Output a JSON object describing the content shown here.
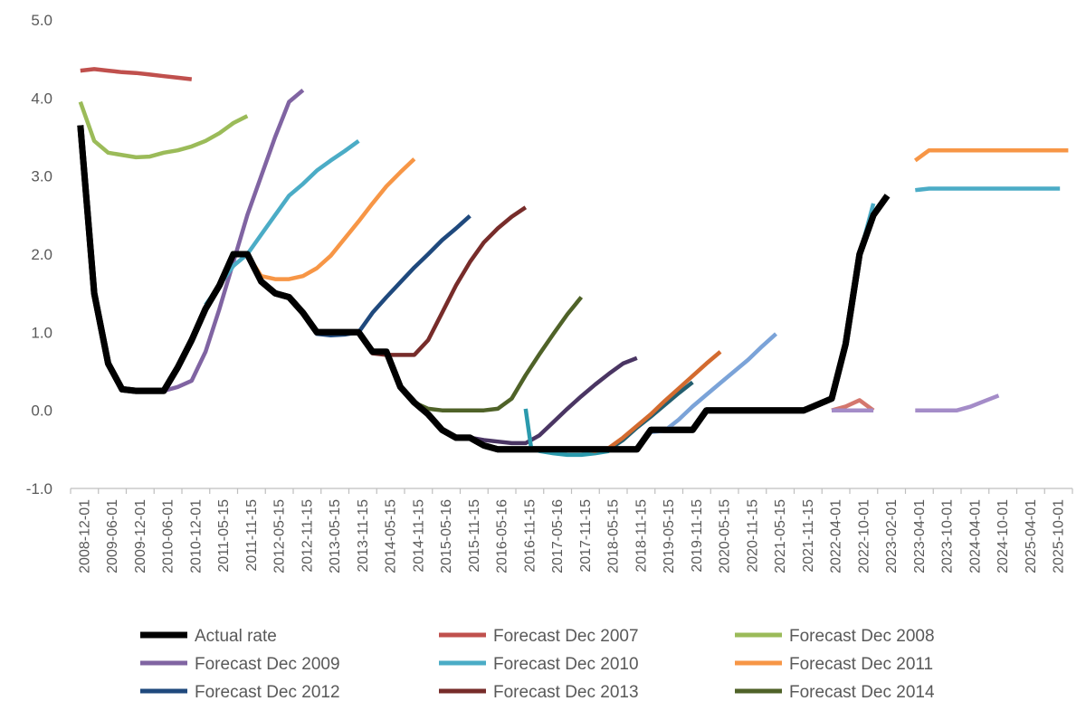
{
  "chart_data": {
    "type": "line",
    "ylim": [
      -1.0,
      5.0
    ],
    "yticks": [
      "5.0",
      "4.0",
      "3.0",
      "2.0",
      "1.0",
      "0.0",
      "-1.0"
    ],
    "ytick_values": [
      5,
      4,
      3,
      2,
      1,
      0,
      -1
    ],
    "x_tick_labels": [
      "2008-12-01",
      "2009-06-01",
      "2009-12-01",
      "2010-06-01",
      "2010-12-01",
      "2011-05-15",
      "2011-11-15",
      "2012-05-15",
      "2012-11-15",
      "2013-05-15",
      "2013-11-15",
      "2014-05-15",
      "2014-11-15",
      "2015-05-16",
      "2015-11-15",
      "2016-05-16",
      "2016-11-15",
      "2017-05-16",
      "2017-11-15",
      "2018-05-15",
      "2018-11-15",
      "2019-05-15",
      "2019-11-15",
      "2020-05-15",
      "2020-11-15",
      "2021-05-15",
      "2021-11-15",
      "2022-04-01",
      "2022-10-01",
      "2023-02-01",
      "2023-04-01",
      "2023-10-01",
      "2024-04-01",
      "2024-10-01",
      "2025-04-01",
      "2025-10-01"
    ],
    "grid": "none",
    "legend_position": "bottom",
    "series": [
      {
        "name": "Actual rate",
        "color": "#000000",
        "width": 7,
        "points": [
          [
            0,
            3.65
          ],
          [
            0.5,
            1.5
          ],
          [
            1,
            0.6
          ],
          [
            1.5,
            0.27
          ],
          [
            2,
            0.25
          ],
          [
            2.5,
            0.25
          ],
          [
            3,
            0.25
          ],
          [
            3.5,
            0.55
          ],
          [
            4,
            0.9
          ],
          [
            4.5,
            1.3
          ],
          [
            5,
            1.6
          ],
          [
            5.5,
            2.0
          ],
          [
            6,
            2.0
          ],
          [
            6.5,
            1.65
          ],
          [
            7,
            1.5
          ],
          [
            7.5,
            1.45
          ],
          [
            8,
            1.25
          ],
          [
            8.5,
            1.0
          ],
          [
            9,
            1.0
          ],
          [
            9.5,
            1.0
          ],
          [
            10,
            1.0
          ],
          [
            10.5,
            0.75
          ],
          [
            11,
            0.75
          ],
          [
            11.5,
            0.3
          ],
          [
            12,
            0.1
          ],
          [
            12.5,
            -0.05
          ],
          [
            13,
            -0.25
          ],
          [
            13.5,
            -0.35
          ],
          [
            14,
            -0.35
          ],
          [
            14.5,
            -0.45
          ],
          [
            15,
            -0.5
          ],
          [
            16,
            -0.5
          ],
          [
            17,
            -0.5
          ],
          [
            18,
            -0.5
          ],
          [
            19,
            -0.5
          ],
          [
            20,
            -0.5
          ],
          [
            20.5,
            -0.25
          ],
          [
            21,
            -0.25
          ],
          [
            22,
            -0.25
          ],
          [
            22.5,
            0
          ],
          [
            24,
            0
          ],
          [
            26,
            0
          ],
          [
            27,
            0.15
          ],
          [
            27.5,
            0.85
          ],
          [
            28,
            2.0
          ],
          [
            28.5,
            2.5
          ],
          [
            29,
            2.75
          ]
        ]
      },
      {
        "name": "Forecast Dec 2007",
        "color": "#c0504d",
        "width": 4.5,
        "points": [
          [
            0,
            4.35
          ],
          [
            0.5,
            4.37
          ],
          [
            1,
            4.35
          ],
          [
            1.5,
            4.33
          ],
          [
            2,
            4.32
          ],
          [
            2.5,
            4.3
          ],
          [
            3,
            4.28
          ],
          [
            3.5,
            4.26
          ],
          [
            4,
            4.24
          ]
        ]
      },
      {
        "name": "Forecast Dec 2008",
        "color": "#9bbb59",
        "width": 4.5,
        "points": [
          [
            0,
            3.95
          ],
          [
            0.5,
            3.45
          ],
          [
            1,
            3.3
          ],
          [
            1.5,
            3.27
          ],
          [
            2,
            3.24
          ],
          [
            2.5,
            3.25
          ],
          [
            3,
            3.3
          ],
          [
            3.5,
            3.33
          ],
          [
            4,
            3.38
          ],
          [
            4.5,
            3.45
          ],
          [
            5,
            3.55
          ],
          [
            5.5,
            3.68
          ],
          [
            6,
            3.77
          ]
        ]
      },
      {
        "name": "Forecast Dec 2009",
        "color": "#8064a2",
        "width": 4.5,
        "points": [
          [
            2,
            0.25
          ],
          [
            2.5,
            0.25
          ],
          [
            3,
            0.25
          ],
          [
            3.5,
            0.3
          ],
          [
            4,
            0.38
          ],
          [
            4.5,
            0.75
          ],
          [
            5,
            1.3
          ],
          [
            5.5,
            1.9
          ],
          [
            6,
            2.5
          ],
          [
            6.5,
            3.0
          ],
          [
            7,
            3.5
          ],
          [
            7.5,
            3.95
          ],
          [
            8,
            4.1
          ]
        ]
      },
      {
        "name": "Forecast Dec 2010",
        "color": "#4bacc6",
        "width": 4.5,
        "points": [
          [
            4.5,
            1.35
          ],
          [
            5,
            1.6
          ],
          [
            5.5,
            1.85
          ],
          [
            6,
            2.0
          ],
          [
            6.5,
            2.25
          ],
          [
            7,
            2.5
          ],
          [
            7.5,
            2.75
          ],
          [
            8,
            2.9
          ],
          [
            8.5,
            3.07
          ],
          [
            9,
            3.2
          ],
          [
            9.5,
            3.32
          ],
          [
            10,
            3.45
          ]
        ]
      },
      {
        "name": "Forecast Dec 2011",
        "color": "#f79646",
        "width": 4.5,
        "points": [
          [
            6,
            2.0
          ],
          [
            6.5,
            1.72
          ],
          [
            7,
            1.68
          ],
          [
            7.5,
            1.68
          ],
          [
            8,
            1.72
          ],
          [
            8.5,
            1.82
          ],
          [
            9,
            1.98
          ],
          [
            9.5,
            2.2
          ],
          [
            10,
            2.42
          ],
          [
            10.5,
            2.65
          ],
          [
            11,
            2.87
          ],
          [
            11.5,
            3.05
          ],
          [
            12,
            3.22
          ]
        ]
      },
      {
        "name": "Forecast Dec 2012",
        "color": "#1f497d",
        "width": 4.5,
        "points": [
          [
            8,
            1.25
          ],
          [
            8.5,
            0.98
          ],
          [
            9,
            0.96
          ],
          [
            9.5,
            0.97
          ],
          [
            10,
            1.0
          ],
          [
            10.5,
            1.25
          ],
          [
            11,
            1.45
          ],
          [
            11.5,
            1.64
          ],
          [
            12,
            1.83
          ],
          [
            12.5,
            2.0
          ],
          [
            13,
            2.18
          ],
          [
            13.5,
            2.33
          ],
          [
            14,
            2.49
          ]
        ]
      },
      {
        "name": "Forecast Dec 2013",
        "color": "#772c2a",
        "width": 4.5,
        "points": [
          [
            10,
            1.0
          ],
          [
            10.5,
            0.73
          ],
          [
            11,
            0.71
          ],
          [
            11.5,
            0.71
          ],
          [
            12,
            0.71
          ],
          [
            12.5,
            0.9
          ],
          [
            13,
            1.25
          ],
          [
            13.5,
            1.6
          ],
          [
            14,
            1.9
          ],
          [
            14.5,
            2.15
          ],
          [
            15,
            2.33
          ],
          [
            15.5,
            2.48
          ],
          [
            16,
            2.6
          ]
        ]
      },
      {
        "name": "Forecast Dec 2014",
        "color": "#4f6228",
        "width": 4.5,
        "points": [
          [
            12,
            0.1
          ],
          [
            12.5,
            0.02
          ],
          [
            13,
            0.0
          ],
          [
            13.5,
            0.0
          ],
          [
            14,
            0.0
          ],
          [
            14.5,
            0.0
          ],
          [
            15,
            0.02
          ],
          [
            15.5,
            0.15
          ],
          [
            16,
            0.45
          ],
          [
            16.5,
            0.72
          ],
          [
            17,
            0.98
          ],
          [
            17.5,
            1.23
          ],
          [
            18,
            1.45
          ]
        ]
      },
      {
        "name": "",
        "color": "#4a3563",
        "width": 4.5,
        "points": [
          [
            14,
            -0.35
          ],
          [
            14.5,
            -0.38
          ],
          [
            15,
            -0.4
          ],
          [
            15.5,
            -0.42
          ],
          [
            16,
            -0.42
          ],
          [
            16.5,
            -0.32
          ],
          [
            17,
            -0.15
          ],
          [
            17.5,
            0.02
          ],
          [
            18,
            0.18
          ],
          [
            18.5,
            0.33
          ],
          [
            19,
            0.47
          ],
          [
            19.5,
            0.6
          ],
          [
            20,
            0.67
          ]
        ]
      },
      {
        "name": "",
        "color": "#2b9aad",
        "width": 4.5,
        "points": [
          [
            16,
            0.02
          ],
          [
            16.2,
            -0.48
          ],
          [
            16.5,
            -0.52
          ],
          [
            17,
            -0.55
          ],
          [
            17.5,
            -0.57
          ],
          [
            18,
            -0.57
          ],
          [
            18.5,
            -0.55
          ],
          [
            19,
            -0.52
          ]
        ]
      },
      {
        "name": "",
        "color": "#235e6f",
        "width": 4.5,
        "points": [
          [
            19,
            -0.5
          ],
          [
            19.5,
            -0.38
          ],
          [
            20,
            -0.22
          ],
          [
            20.5,
            -0.08
          ],
          [
            21,
            0.07
          ],
          [
            21.5,
            0.22
          ],
          [
            22,
            0.36
          ]
        ]
      },
      {
        "name": "",
        "color": "#d36b2f",
        "width": 4.5,
        "points": [
          [
            18,
            -0.5
          ],
          [
            18.5,
            -0.52
          ],
          [
            19,
            -0.48
          ],
          [
            19.5,
            -0.35
          ],
          [
            20,
            -0.2
          ],
          [
            20.5,
            -0.05
          ],
          [
            21,
            0.12
          ],
          [
            21.5,
            0.28
          ],
          [
            22,
            0.44
          ],
          [
            22.5,
            0.6
          ],
          [
            23,
            0.75
          ]
        ]
      },
      {
        "name": "",
        "color": "#7ba3d8",
        "width": 4.5,
        "points": [
          [
            20.5,
            -0.28
          ],
          [
            21,
            -0.26
          ],
          [
            21.5,
            -0.12
          ],
          [
            22,
            0.05
          ],
          [
            22.5,
            0.2
          ],
          [
            23,
            0.35
          ],
          [
            23.5,
            0.5
          ],
          [
            24,
            0.65
          ],
          [
            24.5,
            0.82
          ],
          [
            25,
            0.98
          ]
        ]
      },
      {
        "name": "",
        "color": "#d4776e",
        "width": 4.5,
        "points": [
          [
            22.5,
            0.0
          ],
          [
            23,
            0.01
          ],
          [
            23.5,
            0.01
          ],
          [
            24,
            0.01
          ]
        ]
      },
      {
        "name": "",
        "color": "#9bbb59",
        "width": 4.5,
        "points": [
          [
            24,
            0.0
          ],
          [
            25,
            0.0
          ],
          [
            26,
            0.0
          ]
        ]
      },
      {
        "name": "",
        "color": "#d4776e",
        "width": 4.5,
        "points": [
          [
            27,
            0.0
          ],
          [
            27.5,
            0.05
          ],
          [
            28,
            0.13
          ],
          [
            28.5,
            0.0
          ]
        ]
      },
      {
        "name": "",
        "color": "#a48cc8",
        "width": 4.5,
        "points": [
          [
            27,
            0.0
          ],
          [
            28.5,
            0.0
          ]
        ]
      },
      {
        "name": "",
        "color": "#4bacc6",
        "width": 4.5,
        "points": [
          [
            28,
            2.0
          ],
          [
            28.2,
            2.25
          ],
          [
            28.5,
            2.65
          ]
        ]
      },
      {
        "name": "",
        "color": "#f79646",
        "width": 4.5,
        "points": [
          [
            30,
            3.2
          ],
          [
            30.5,
            3.33
          ],
          [
            31,
            3.33
          ],
          [
            32,
            3.33
          ],
          [
            33,
            3.33
          ],
          [
            34,
            3.33
          ],
          [
            35,
            3.33
          ],
          [
            35.5,
            3.33
          ]
        ]
      },
      {
        "name": "",
        "color": "#4bacc6",
        "width": 4.5,
        "points": [
          [
            30,
            2.82
          ],
          [
            30.5,
            2.84
          ],
          [
            31,
            2.84
          ],
          [
            32,
            2.84
          ],
          [
            33,
            2.84
          ],
          [
            34,
            2.84
          ],
          [
            35,
            2.84
          ],
          [
            35.2,
            2.84
          ]
        ]
      },
      {
        "name": "",
        "color": "#a48cc8",
        "width": 4.5,
        "points": [
          [
            30,
            0.0
          ],
          [
            31,
            0.0
          ],
          [
            31.5,
            0.0
          ],
          [
            32,
            0.05
          ],
          [
            32.5,
            0.12
          ],
          [
            33,
            0.19
          ]
        ]
      }
    ]
  },
  "legend": [
    {
      "label": "Actual rate",
      "color": "#000000"
    },
    {
      "label": "Forecast Dec 2007",
      "color": "#c0504d"
    },
    {
      "label": "Forecast Dec 2008",
      "color": "#9bbb59"
    },
    {
      "label": "Forecast Dec 2009",
      "color": "#8064a2"
    },
    {
      "label": "Forecast Dec 2010",
      "color": "#4bacc6"
    },
    {
      "label": "Forecast Dec 2011",
      "color": "#f79646"
    },
    {
      "label": "Forecast Dec 2012",
      "color": "#1f497d"
    },
    {
      "label": "Forecast Dec 2013",
      "color": "#772c2a"
    },
    {
      "label": "Forecast Dec 2014",
      "color": "#4f6228"
    }
  ]
}
